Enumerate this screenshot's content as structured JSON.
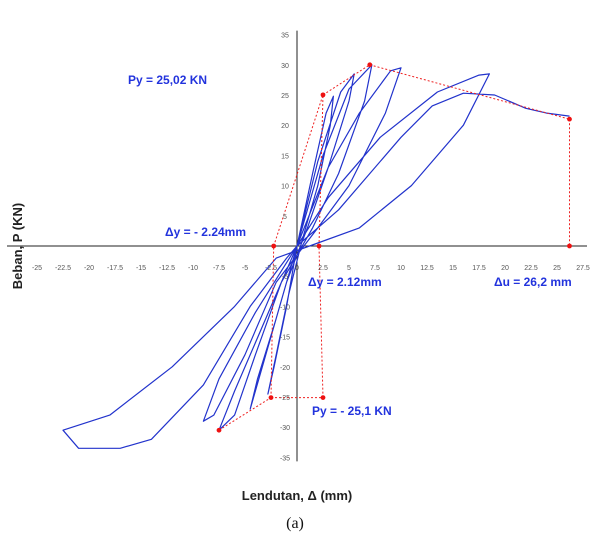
{
  "chart_data": {
    "type": "line",
    "xlabel": "Lendutan, Δ (mm)",
    "ylabel": "Beban, P (KN)",
    "xlim": [
      -27.5,
      27.5
    ],
    "ylim": [
      -35,
      35
    ],
    "x_ticks": [
      "-25",
      "-22.5",
      "-20",
      "-17.5",
      "-15",
      "-12.5",
      "-10",
      "-7.5",
      "-5",
      "-2.5",
      "0",
      "2.5",
      "5",
      "7.5",
      "10",
      "12.5",
      "15",
      "17.5",
      "20",
      "22.5",
      "25",
      "27.5"
    ],
    "y_ticks": [
      "-35",
      "-30",
      "-25",
      "-20",
      "-15",
      "-10",
      "-5",
      "5",
      "10",
      "15",
      "20",
      "25",
      "30",
      "35"
    ],
    "grid": false,
    "annotations": [
      {
        "label": "Py = 25,02 KN",
        "x": 2.5,
        "y": 25.02
      },
      {
        "label": "Δy = - 2.24mm",
        "x": -2.24,
        "y": 0
      },
      {
        "label": "Δy = 2.12mm",
        "x": 2.12,
        "y": 0
      },
      {
        "label": "Δu = 26,2 mm",
        "x": 26.2,
        "y": 0
      },
      {
        "label": "Py = - 25,1 KN",
        "x": -2.5,
        "y": -25.1
      }
    ],
    "backbone": [
      {
        "x": -7.5,
        "y": -30.5
      },
      {
        "x": -2.5,
        "y": -25.1
      },
      {
        "x": 2.5,
        "y": -25.1
      },
      {
        "x": -2.24,
        "y": 0
      },
      {
        "x": 2.12,
        "y": 0
      },
      {
        "x": 2.5,
        "y": 25.02
      },
      {
        "x": 7.0,
        "y": 30.0
      },
      {
        "x": 26.2,
        "y": 21.0
      },
      {
        "x": 26.2,
        "y": 0
      }
    ],
    "series": [
      {
        "values": [
          [
            0,
            0
          ],
          [
            1.5,
            12
          ],
          [
            2.8,
            22
          ],
          [
            3.5,
            24.8
          ],
          [
            3.2,
            20
          ],
          [
            2.0,
            10
          ],
          [
            0.5,
            1
          ],
          [
            -0.8,
            -8
          ],
          [
            -2,
            -18
          ],
          [
            -2.8,
            -24.5
          ],
          [
            -2.2,
            -20
          ],
          [
            -1,
            -10
          ],
          [
            0,
            0
          ],
          [
            2,
            14
          ],
          [
            4.2,
            25.5
          ],
          [
            5.5,
            28.5
          ],
          [
            5,
            24
          ],
          [
            3,
            13
          ],
          [
            1,
            3
          ],
          [
            -1,
            -6
          ],
          [
            -3,
            -18
          ],
          [
            -4.5,
            -27
          ],
          [
            -3.8,
            -22
          ],
          [
            -2,
            -12
          ],
          [
            0,
            0
          ],
          [
            2.5,
            15
          ],
          [
            5,
            26
          ],
          [
            7.2,
            30
          ],
          [
            6.5,
            24
          ],
          [
            4,
            12
          ],
          [
            1.5,
            3
          ],
          [
            -1.5,
            -6
          ],
          [
            -4,
            -18
          ],
          [
            -6,
            -28
          ],
          [
            -7.5,
            -30.5
          ],
          [
            -6,
            -24
          ],
          [
            -3,
            -12
          ],
          [
            0,
            0
          ],
          [
            3,
            13
          ],
          [
            6,
            22
          ],
          [
            9,
            29
          ],
          [
            10,
            29.5
          ],
          [
            8.5,
            22
          ],
          [
            5,
            10
          ],
          [
            2,
            3
          ],
          [
            -2,
            -6
          ],
          [
            -5,
            -18
          ],
          [
            -8,
            -28
          ],
          [
            -9,
            -29
          ],
          [
            -7.5,
            -22
          ],
          [
            -4,
            -11
          ],
          [
            0,
            0
          ],
          [
            3,
            8
          ],
          [
            8,
            18
          ],
          [
            13.5,
            25.5
          ],
          [
            17.5,
            28.3
          ],
          [
            18.5,
            28.5
          ],
          [
            16,
            20
          ],
          [
            11,
            10
          ],
          [
            6,
            3
          ],
          [
            2,
            0.5
          ],
          [
            -2,
            -2
          ],
          [
            -6,
            -10
          ],
          [
            -12,
            -20
          ],
          [
            -18,
            -28
          ],
          [
            -22.5,
            -30.5
          ],
          [
            -21,
            -33.5
          ],
          [
            -17,
            -33.5
          ],
          [
            -14,
            -32
          ],
          [
            -9,
            -23
          ],
          [
            -4.5,
            -10
          ],
          [
            -1,
            -2
          ],
          [
            0,
            0
          ],
          [
            4,
            6
          ],
          [
            10,
            18
          ],
          [
            13,
            23.2
          ],
          [
            16,
            25.3
          ],
          [
            19,
            25
          ],
          [
            22,
            22.8
          ],
          [
            24,
            22
          ],
          [
            26.2,
            21.5
          ]
        ]
      }
    ]
  },
  "caption": "(a)"
}
